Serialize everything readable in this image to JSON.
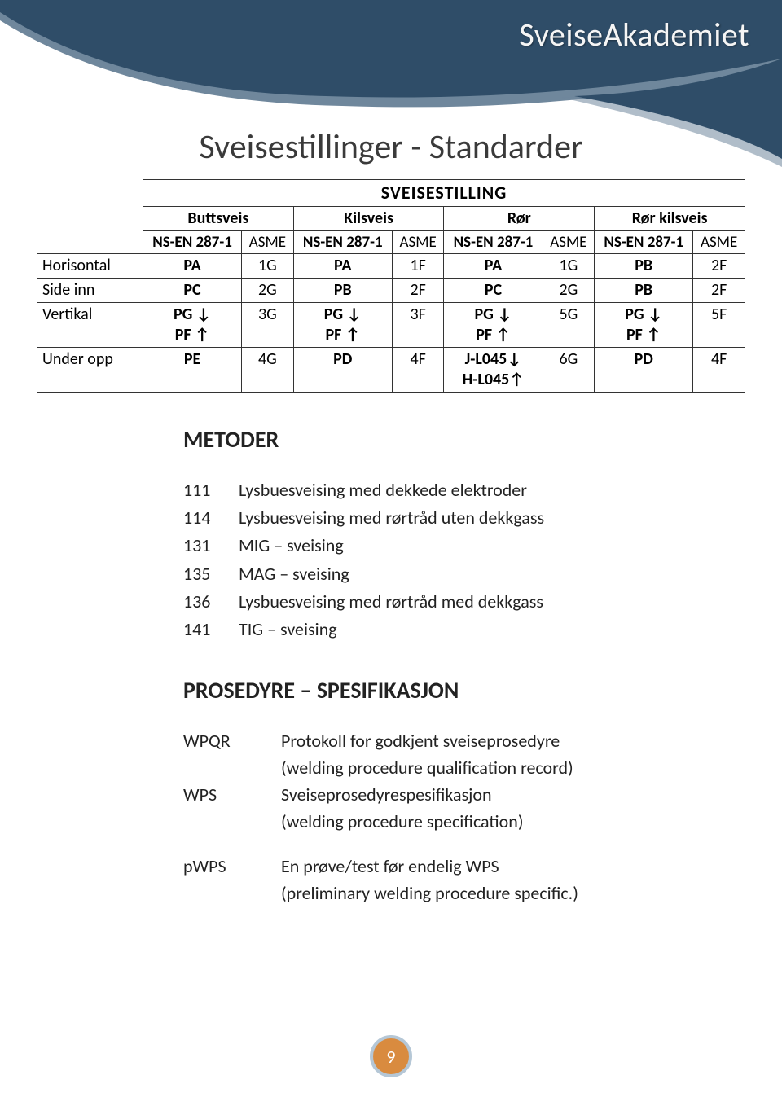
{
  "brand": "SveiseAkademiet",
  "page_title": "Sveisestillinger - Standarder",
  "page_number": "9",
  "colors": {
    "banner": "#2f4d68",
    "banner_shadow": "#6f879c",
    "badge_bg": "#d98b3f",
    "badge_ring": "#b5c7d6",
    "text": "#222222"
  },
  "table": {
    "main_header": "SVEISESTILLING",
    "groups": [
      "Buttsveis",
      "Kilsveis",
      "Rør",
      "Rør kilsveis"
    ],
    "subheaders": {
      "ns": "NS-EN 287-1",
      "asme": "ASME"
    },
    "rows": [
      {
        "label": "Horisontal",
        "cells": [
          {
            "ns": "PA",
            "asme": "1G"
          },
          {
            "ns": "PA",
            "asme": "1F"
          },
          {
            "ns": "PA",
            "asme": "1G"
          },
          {
            "ns": "PB",
            "asme": "2F"
          }
        ]
      },
      {
        "label": "Side inn",
        "cells": [
          {
            "ns": "PC",
            "asme": "2G"
          },
          {
            "ns": "PB",
            "asme": "2F"
          },
          {
            "ns": "PC",
            "asme": "2G"
          },
          {
            "ns": "PB",
            "asme": "2F"
          }
        ]
      },
      {
        "label": "Vertikal",
        "cells": [
          {
            "ns": "PG ↓\nPF ↑",
            "asme": "3G"
          },
          {
            "ns": "PG ↓\nPF ↑",
            "asme": "3F"
          },
          {
            "ns": "PG ↓\nPF ↑",
            "asme": "5G"
          },
          {
            "ns": "PG ↓\nPF ↑",
            "asme": "5F"
          }
        ]
      },
      {
        "label": "Under opp",
        "cells": [
          {
            "ns": "PE",
            "asme": "4G"
          },
          {
            "ns": "PD",
            "asme": "4F"
          },
          {
            "ns": "J-L045↓\nH-L045↑",
            "asme": "6G"
          },
          {
            "ns": "PD",
            "asme": "4F"
          }
        ]
      }
    ]
  },
  "methods": {
    "heading": "METODER",
    "items": [
      {
        "code": "111",
        "desc": "Lysbuesveising med dekkede elektroder"
      },
      {
        "code": "114",
        "desc": "Lysbuesveising med rørtråd uten dekkgass"
      },
      {
        "code": "131",
        "desc": "MIG – sveising"
      },
      {
        "code": "135",
        "desc": "MAG – sveising"
      },
      {
        "code": "136",
        "desc": "Lysbuesveising med rørtråd med dekkgass"
      },
      {
        "code": "141",
        "desc": "TIG – sveising"
      }
    ]
  },
  "procedure": {
    "heading": "PROSEDYRE – SPESIFIKASJON",
    "items": [
      {
        "abbr": "WPQR",
        "line1": "Protokoll for godkjent sveiseprosedyre",
        "line2": "(welding procedure qualification record)"
      },
      {
        "abbr": "WPS",
        "line1": "Sveiseprosedyrespesifikasjon",
        "line2": "(welding procedure specification)"
      },
      {
        "abbr": "pWPS",
        "line1": "En prøve/test før endelig WPS",
        "line2": "(preliminary welding procedure specific.)"
      }
    ]
  }
}
